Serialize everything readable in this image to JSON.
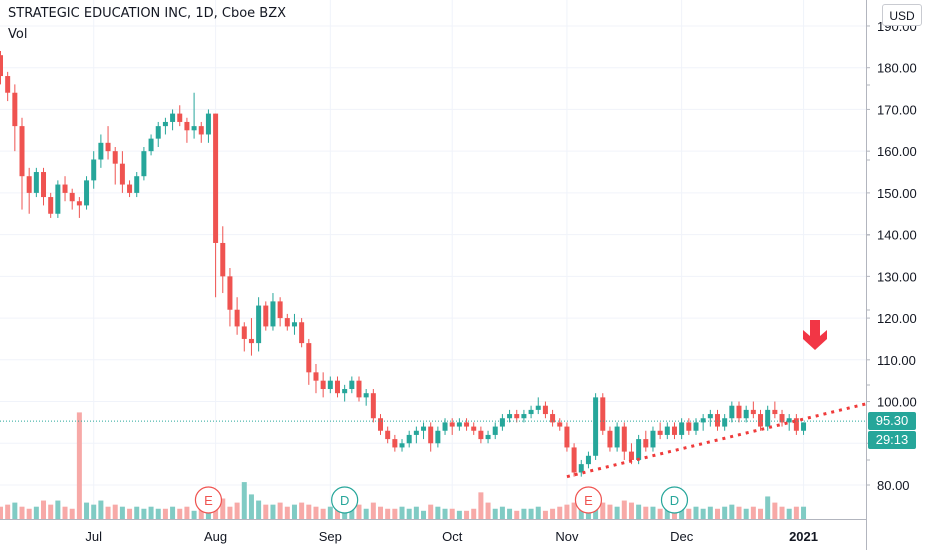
{
  "header": {
    "title": "STRATEGIC EDUCATION INC, 1D, Cboe BZX",
    "vol_label": "Vol",
    "currency": "USD"
  },
  "badges": {
    "last_price": "95.30",
    "countdown": "29:13"
  },
  "events": [
    "E",
    "D",
    "E",
    "D"
  ],
  "colors": {
    "up": "#26a69a",
    "down": "#ef5350",
    "up_vol": "#80cbc4",
    "down_vol": "#f7a9a7",
    "trendline": "#ef3b3b",
    "arrow": "#f23645"
  },
  "chart_data": {
    "type": "candlestick",
    "title": "STRATEGIC EDUCATION INC, 1D, Cboe BZX",
    "y_ticks": [
      80,
      90,
      100,
      110,
      120,
      130,
      140,
      150,
      160,
      170,
      180,
      190
    ],
    "y_tick_labels": [
      "80.00",
      "90.00",
      "100.00",
      "110.00",
      "120.00",
      "130.00",
      "140.00",
      "150.00",
      "160.00",
      "170.00",
      "180.00",
      "190.00"
    ],
    "x_ticks": [
      "Jul",
      "Aug",
      "Sep",
      "Oct",
      "Nov",
      "Dec",
      "2021"
    ],
    "grid": true,
    "last_price": 95.3,
    "candles": [
      [
        183,
        184,
        176,
        178
      ],
      [
        178,
        179,
        172,
        174
      ],
      [
        174,
        176,
        160,
        166
      ],
      [
        166,
        168,
        146,
        154
      ],
      [
        154,
        156,
        145,
        150
      ],
      [
        150,
        156,
        149,
        155
      ],
      [
        155,
        156,
        147,
        149
      ],
      [
        149,
        150,
        144,
        145
      ],
      [
        145,
        153,
        144,
        152
      ],
      [
        152,
        154,
        148,
        150
      ],
      [
        150,
        151,
        146,
        148
      ],
      [
        148,
        149,
        144,
        147
      ],
      [
        147,
        154,
        146,
        153
      ],
      [
        153,
        160,
        151,
        158
      ],
      [
        158,
        164,
        156,
        162
      ],
      [
        162,
        166,
        158,
        160
      ],
      [
        160,
        161,
        152,
        157
      ],
      [
        157,
        160,
        150,
        152
      ],
      [
        152,
        153,
        149,
        150
      ],
      [
        150,
        155,
        149,
        154
      ],
      [
        154,
        161,
        153,
        160
      ],
      [
        160,
        164,
        159,
        163
      ],
      [
        163,
        167,
        161,
        166
      ],
      [
        166,
        168,
        164,
        167
      ],
      [
        167,
        170,
        165,
        169
      ],
      [
        169,
        171,
        166,
        167
      ],
      [
        167,
        168,
        162,
        165
      ],
      [
        165,
        174,
        163,
        166
      ],
      [
        166,
        167,
        162,
        164
      ],
      [
        164,
        170,
        162,
        169
      ],
      [
        169,
        169,
        125,
        138
      ],
      [
        138,
        142,
        126,
        130
      ],
      [
        130,
        132,
        118,
        122
      ],
      [
        122,
        125,
        116,
        118
      ],
      [
        118,
        119,
        112,
        115
      ],
      [
        115,
        120,
        111,
        114
      ],
      [
        114,
        125,
        112,
        123
      ],
      [
        123,
        124,
        117,
        118
      ],
      [
        118,
        126,
        117,
        124
      ],
      [
        124,
        125,
        118,
        120
      ],
      [
        120,
        121,
        117,
        118
      ],
      [
        118,
        121,
        116,
        119
      ],
      [
        119,
        120,
        113,
        114
      ],
      [
        114,
        115,
        104,
        107
      ],
      [
        107,
        109,
        102,
        105
      ],
      [
        105,
        107,
        101,
        103
      ],
      [
        103,
        106,
        102,
        105
      ],
      [
        105,
        106,
        101,
        102
      ],
      [
        102,
        104,
        100,
        103
      ],
      [
        103,
        106,
        102,
        105
      ],
      [
        105,
        106,
        100,
        101
      ],
      [
        101,
        103,
        99,
        102
      ],
      [
        102,
        103,
        95,
        96
      ],
      [
        96,
        97,
        92,
        93
      ],
      [
        93,
        94,
        90,
        91
      ],
      [
        91,
        92,
        88,
        89
      ],
      [
        89,
        91,
        88,
        90
      ],
      [
        90,
        93,
        89,
        92
      ],
      [
        92,
        94,
        90,
        93
      ],
      [
        93,
        95,
        91,
        94
      ],
      [
        94,
        95,
        88,
        90
      ],
      [
        90,
        94,
        89,
        93
      ],
      [
        93,
        96,
        92,
        95
      ],
      [
        95,
        96,
        92,
        94
      ],
      [
        94,
        96,
        93,
        95
      ],
      [
        95,
        96,
        93,
        94
      ],
      [
        94,
        95,
        92,
        93
      ],
      [
        93,
        94,
        90,
        91
      ],
      [
        91,
        93,
        90,
        92
      ],
      [
        92,
        95,
        91,
        94
      ],
      [
        94,
        97,
        93,
        96
      ],
      [
        96,
        98,
        95,
        97
      ],
      [
        97,
        98,
        95,
        96
      ],
      [
        96,
        98,
        95,
        97
      ],
      [
        97,
        99,
        96,
        98
      ],
      [
        98,
        101,
        97,
        99
      ],
      [
        99,
        100,
        96,
        97
      ],
      [
        97,
        98,
        94,
        95
      ],
      [
        95,
        96,
        93,
        94
      ],
      [
        94,
        95,
        88,
        89
      ],
      [
        89,
        90,
        82,
        83
      ],
      [
        83,
        86,
        82,
        85
      ],
      [
        85,
        88,
        84,
        87
      ],
      [
        87,
        102,
        86,
        101
      ],
      [
        101,
        102,
        92,
        93
      ],
      [
        93,
        94,
        88,
        89
      ],
      [
        89,
        95,
        88,
        94
      ],
      [
        94,
        95,
        86,
        88
      ],
      [
        88,
        90,
        85,
        86
      ],
      [
        86,
        92,
        85,
        91
      ],
      [
        91,
        93,
        88,
        89
      ],
      [
        89,
        94,
        88,
        93
      ],
      [
        93,
        95,
        91,
        92
      ],
      [
        92,
        95,
        91,
        94
      ],
      [
        94,
        95,
        91,
        92
      ],
      [
        92,
        96,
        91,
        95
      ],
      [
        95,
        96,
        92,
        93
      ],
      [
        93,
        96,
        92,
        95
      ],
      [
        95,
        97,
        93,
        96
      ],
      [
        96,
        98,
        94,
        97
      ],
      [
        97,
        98,
        93,
        94
      ],
      [
        94,
        97,
        93,
        96
      ],
      [
        96,
        100,
        95,
        99
      ],
      [
        99,
        100,
        95,
        96
      ],
      [
        96,
        99,
        95,
        98
      ],
      [
        98,
        100,
        96,
        97
      ],
      [
        97,
        98,
        93,
        94
      ],
      [
        94,
        99,
        93,
        98
      ],
      [
        98,
        100,
        96,
        97
      ],
      [
        97,
        98,
        94,
        95
      ],
      [
        95,
        97,
        93,
        96
      ],
      [
        96,
        97,
        92,
        93
      ],
      [
        93,
        95,
        92,
        95
      ]
    ],
    "volume": [
      [
        6,
        0
      ],
      [
        7,
        0
      ],
      [
        8,
        1
      ],
      [
        6,
        0
      ],
      [
        5,
        0
      ],
      [
        6,
        1
      ],
      [
        9,
        0
      ],
      [
        7,
        0
      ],
      [
        9,
        1
      ],
      [
        6,
        0
      ],
      [
        5,
        0
      ],
      [
        52,
        0
      ],
      [
        8,
        1
      ],
      [
        7,
        1
      ],
      [
        9,
        1
      ],
      [
        6,
        0
      ],
      [
        7,
        0
      ],
      [
        6,
        1
      ],
      [
        5,
        0
      ],
      [
        6,
        1
      ],
      [
        5,
        1
      ],
      [
        6,
        1
      ],
      [
        5,
        1
      ],
      [
        5,
        0
      ],
      [
        6,
        1
      ],
      [
        5,
        0
      ],
      [
        6,
        0
      ],
      [
        4,
        1
      ],
      [
        6,
        0
      ],
      [
        7,
        1
      ],
      [
        8,
        0
      ],
      [
        10,
        0
      ],
      [
        6,
        0
      ],
      [
        8,
        0
      ],
      [
        18,
        1
      ],
      [
        12,
        1
      ],
      [
        9,
        1
      ],
      [
        7,
        0
      ],
      [
        7,
        1
      ],
      [
        8,
        0
      ],
      [
        6,
        0
      ],
      [
        7,
        1
      ],
      [
        8,
        0
      ],
      [
        7,
        0
      ],
      [
        6,
        0
      ],
      [
        5,
        0
      ],
      [
        6,
        1
      ],
      [
        6,
        0
      ],
      [
        5,
        1
      ],
      [
        6,
        1
      ],
      [
        7,
        0
      ],
      [
        5,
        1
      ],
      [
        8,
        0
      ],
      [
        6,
        0
      ],
      [
        5,
        0
      ],
      [
        5,
        0
      ],
      [
        6,
        1
      ],
      [
        5,
        1
      ],
      [
        6,
        1
      ],
      [
        4,
        1
      ],
      [
        7,
        0
      ],
      [
        6,
        1
      ],
      [
        5,
        1
      ],
      [
        5,
        0
      ],
      [
        4,
        1
      ],
      [
        4,
        0
      ],
      [
        5,
        0
      ],
      [
        13,
        0
      ],
      [
        8,
        0
      ],
      [
        5,
        1
      ],
      [
        6,
        1
      ],
      [
        5,
        1
      ],
      [
        4,
        0
      ],
      [
        5,
        1
      ],
      [
        5,
        1
      ],
      [
        6,
        1
      ],
      [
        4,
        0
      ],
      [
        5,
        0
      ],
      [
        6,
        0
      ],
      [
        7,
        0
      ],
      [
        8,
        0
      ],
      [
        7,
        1
      ],
      [
        6,
        1
      ],
      [
        9,
        1
      ],
      [
        8,
        0
      ],
      [
        7,
        0
      ],
      [
        6,
        1
      ],
      [
        9,
        0
      ],
      [
        8,
        0
      ],
      [
        7,
        1
      ],
      [
        6,
        0
      ],
      [
        6,
        1
      ],
      [
        5,
        0
      ],
      [
        6,
        1
      ],
      [
        5,
        0
      ],
      [
        6,
        1
      ],
      [
        5,
        0
      ],
      [
        6,
        1
      ],
      [
        5,
        1
      ],
      [
        6,
        1
      ],
      [
        5,
        0
      ],
      [
        6,
        1
      ],
      [
        7,
        1
      ],
      [
        6,
        0
      ],
      [
        5,
        1
      ],
      [
        6,
        0
      ],
      [
        5,
        0
      ],
      [
        11,
        1
      ],
      [
        8,
        0
      ],
      [
        6,
        0
      ],
      [
        5,
        1
      ],
      [
        6,
        0
      ],
      [
        6,
        1
      ]
    ],
    "trendline": {
      "start_index": 79,
      "start_price": 82,
      "end_index": 112,
      "end_price": 95.8,
      "style": "dotted"
    },
    "annotation": "down arrow"
  }
}
